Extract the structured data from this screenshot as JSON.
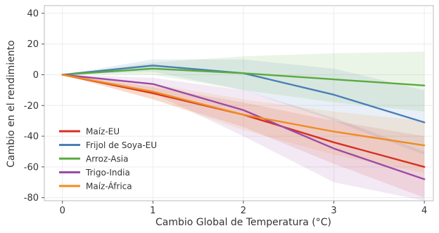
{
  "chart_data": {
    "type": "line",
    "title": "",
    "xlabel": "Cambio Global de Temperatura (°C)",
    "ylabel": "Cambio en el rendimiento",
    "xlim": [
      -0.2,
      4.1
    ],
    "ylim": [
      -82,
      45
    ],
    "xticks": [
      0,
      1,
      2,
      3,
      4
    ],
    "xtick_labels": [
      "0",
      "1",
      "2",
      "3",
      "4"
    ],
    "yticks": [
      -80,
      -60,
      -40,
      -20,
      0,
      20,
      40
    ],
    "ytick_labels": [
      "-80",
      "-60",
      "-40",
      "-20",
      "0",
      "20",
      "40"
    ],
    "grid": true,
    "legend_position": "bottom-left",
    "x": [
      0,
      1,
      2,
      3,
      4
    ],
    "series": [
      {
        "name": "Maíz-EU",
        "color": "#d7301f",
        "values": [
          0,
          -12,
          -26,
          -44,
          -60
        ],
        "band_lower": [
          0,
          -16,
          -34,
          -58,
          -80
        ],
        "band_upper": [
          0,
          -8,
          -18,
          -30,
          -40
        ]
      },
      {
        "name": "Frijol de Soya-EU",
        "color": "#4a7fb5",
        "values": [
          0,
          6,
          1,
          -13,
          -31
        ],
        "band_lower": [
          0,
          2,
          -10,
          -30,
          -52
        ],
        "band_upper": [
          0,
          10,
          10,
          4,
          -10
        ]
      },
      {
        "name": "Arroz-Asia",
        "color": "#5aaa3c",
        "values": [
          0,
          4,
          1,
          -3,
          -7
        ],
        "band_lower": [
          0,
          0,
          -10,
          -18,
          -24
        ],
        "band_upper": [
          0,
          8,
          12,
          14,
          15
        ]
      },
      {
        "name": "Trigo-India",
        "color": "#9b4aa6",
        "values": [
          0,
          -6,
          -23,
          -48,
          -68
        ],
        "band_lower": [
          0,
          -12,
          -40,
          -70,
          -82
        ],
        "band_upper": [
          0,
          -2,
          -10,
          -28,
          -50
        ]
      },
      {
        "name": "Maíz-África",
        "color": "#f08c1e",
        "values": [
          0,
          -11,
          -26,
          -37,
          -46
        ],
        "band_lower": [
          0,
          -16,
          -36,
          -52,
          -64
        ],
        "band_upper": [
          0,
          -6,
          -16,
          -24,
          -30
        ]
      }
    ]
  }
}
